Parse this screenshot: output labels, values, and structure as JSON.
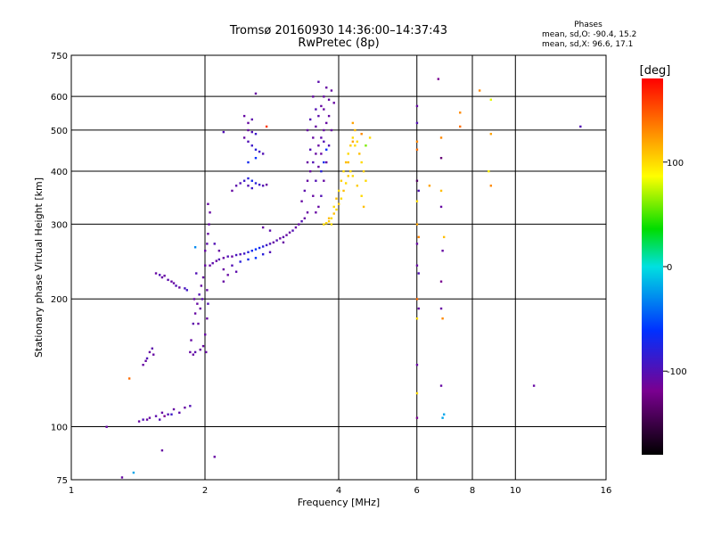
{
  "header": {
    "title_line1": "Tromsø 20160930 14:36:00–14:37:43",
    "title_line2": "RwPretec (8p)",
    "stats_heading": "Phases",
    "stats_O": "mean, sd,O: -90.4, 15.2",
    "stats_X": "mean, sd,X:  96.6, 17.1"
  },
  "colorbar": {
    "unit_label": "[deg]",
    "range": [
      -180,
      180
    ],
    "ticks": [
      "100",
      "0",
      "-100"
    ],
    "tick_values": [
      100,
      0,
      -100
    ]
  },
  "chart_data": {
    "type": "scatter",
    "xlabel": "Frequency [MHz]",
    "ylabel": "Stationary phase Virtual Height [km]",
    "x_scale": "log",
    "y_scale": "log",
    "xlim": [
      1,
      16
    ],
    "ylim": [
      75,
      750
    ],
    "x_ticks": [
      1,
      2,
      4,
      6,
      8,
      10,
      16
    ],
    "x_tick_labels": [
      "1",
      "2",
      "4",
      "6",
      "8",
      "10",
      "16"
    ],
    "y_ticks": [
      75,
      100,
      200,
      300,
      400,
      500,
      600,
      750
    ],
    "y_tick_labels": [
      "75",
      "100",
      "200",
      "300",
      "400",
      "500",
      "600",
      "750"
    ],
    "grid": true,
    "points": [
      [
        1.2,
        100,
        -110
      ],
      [
        1.3,
        76,
        -110
      ],
      [
        1.38,
        78,
        -20
      ],
      [
        1.35,
        130,
        140
      ],
      [
        1.42,
        103,
        -110
      ],
      [
        1.45,
        104,
        -100
      ],
      [
        1.5,
        105,
        -110
      ],
      [
        1.55,
        106,
        -105
      ],
      [
        1.6,
        108,
        -110
      ],
      [
        1.65,
        107,
        -100
      ],
      [
        1.7,
        110,
        -110
      ],
      [
        1.75,
        108,
        -105
      ],
      [
        1.8,
        111,
        -110
      ],
      [
        1.85,
        112,
        -100
      ],
      [
        1.68,
        107,
        -90
      ],
      [
        1.62,
        106,
        -120
      ],
      [
        1.48,
        104,
        -110
      ],
      [
        1.58,
        104,
        -100
      ],
      [
        1.45,
        140,
        -110
      ],
      [
        1.48,
        145,
        -100
      ],
      [
        1.5,
        150,
        -110
      ],
      [
        1.52,
        153,
        -105
      ],
      [
        1.47,
        143,
        -110
      ],
      [
        1.53,
        148,
        -110
      ],
      [
        1.55,
        230,
        -110
      ],
      [
        1.58,
        228,
        -100
      ],
      [
        1.6,
        225,
        -110
      ],
      [
        1.65,
        222,
        -105
      ],
      [
        1.7,
        218,
        -110
      ],
      [
        1.72,
        215,
        -100
      ],
      [
        1.75,
        213,
        -110
      ],
      [
        1.8,
        212,
        -95
      ],
      [
        1.82,
        210,
        -90
      ],
      [
        1.62,
        227,
        -110
      ],
      [
        1.68,
        220,
        -110
      ],
      [
        1.6,
        88,
        -110
      ],
      [
        1.85,
        150,
        -110
      ],
      [
        1.88,
        148,
        -110
      ],
      [
        1.9,
        150,
        -105
      ],
      [
        1.95,
        152,
        -110
      ],
      [
        1.98,
        155,
        -110
      ],
      [
        1.86,
        160,
        -110
      ],
      [
        1.88,
        175,
        -105
      ],
      [
        1.9,
        185,
        -110
      ],
      [
        1.92,
        195,
        -110
      ],
      [
        1.94,
        205,
        -100
      ],
      [
        1.96,
        215,
        -110
      ],
      [
        1.98,
        225,
        -110
      ],
      [
        2.0,
        240,
        -110
      ],
      [
        1.95,
        190,
        -110
      ],
      [
        1.97,
        200,
        -105
      ],
      [
        2.0,
        165,
        -110
      ],
      [
        2.02,
        180,
        -110
      ],
      [
        2.03,
        195,
        -100
      ],
      [
        2.02,
        210,
        -110
      ],
      [
        2.01,
        150,
        -110
      ],
      [
        1.93,
        175,
        -110
      ],
      [
        1.89,
        200,
        -110
      ],
      [
        1.91,
        230,
        -100
      ],
      [
        2.0,
        260,
        -110
      ],
      [
        2.02,
        270,
        -105
      ],
      [
        2.03,
        285,
        -110
      ],
      [
        2.04,
        300,
        -110
      ],
      [
        2.05,
        320,
        -110
      ],
      [
        2.03,
        335,
        -110
      ],
      [
        1.9,
        265,
        -30
      ],
      [
        2.1,
        85,
        -110
      ],
      [
        2.05,
        240,
        -110
      ],
      [
        2.08,
        243,
        -105
      ],
      [
        2.12,
        246,
        -110
      ],
      [
        2.15,
        248,
        -100
      ],
      [
        2.2,
        250,
        -110
      ],
      [
        2.25,
        252,
        -100
      ],
      [
        2.3,
        252,
        -110
      ],
      [
        2.35,
        254,
        -95
      ],
      [
        2.4,
        255,
        -100
      ],
      [
        2.45,
        256,
        -90
      ],
      [
        2.5,
        258,
        -80
      ],
      [
        2.55,
        260,
        -70
      ],
      [
        2.6,
        262,
        -60
      ],
      [
        2.65,
        264,
        -70
      ],
      [
        2.7,
        266,
        -80
      ],
      [
        2.75,
        268,
        -90
      ],
      [
        2.8,
        270,
        -100
      ],
      [
        2.85,
        272,
        -110
      ],
      [
        2.9,
        275,
        -100
      ],
      [
        2.95,
        278,
        -110
      ],
      [
        3.0,
        280,
        -105
      ],
      [
        3.05,
        283,
        -110
      ],
      [
        3.1,
        287,
        -110
      ],
      [
        3.15,
        290,
        -100
      ],
      [
        3.2,
        295,
        -110
      ],
      [
        3.25,
        300,
        -110
      ],
      [
        3.3,
        305,
        -100
      ],
      [
        3.35,
        310,
        -110
      ],
      [
        3.4,
        320,
        -110
      ],
      [
        2.2,
        235,
        -110
      ],
      [
        2.3,
        240,
        -100
      ],
      [
        2.4,
        245,
        -80
      ],
      [
        2.5,
        248,
        -70
      ],
      [
        2.6,
        250,
        -60
      ],
      [
        2.7,
        255,
        -80
      ],
      [
        2.8,
        258,
        -100
      ],
      [
        2.2,
        220,
        -110
      ],
      [
        2.25,
        228,
        -110
      ],
      [
        2.35,
        232,
        -105
      ],
      [
        2.15,
        260,
        -110
      ],
      [
        2.1,
        270,
        -100
      ],
      [
        2.7,
        295,
        -110
      ],
      [
        2.8,
        290,
        -105
      ],
      [
        3.0,
        272,
        -110
      ],
      [
        2.2,
        495,
        -100
      ],
      [
        2.6,
        610,
        -110
      ],
      [
        2.75,
        510,
        160
      ],
      [
        2.3,
        360,
        -110
      ],
      [
        2.35,
        370,
        -105
      ],
      [
        2.4,
        375,
        -100
      ],
      [
        2.45,
        380,
        -90
      ],
      [
        2.5,
        385,
        -80
      ],
      [
        2.55,
        380,
        -70
      ],
      [
        2.6,
        375,
        -80
      ],
      [
        2.65,
        372,
        -90
      ],
      [
        2.7,
        370,
        -100
      ],
      [
        2.75,
        372,
        -110
      ],
      [
        2.5,
        370,
        -100
      ],
      [
        2.55,
        365,
        -90
      ],
      [
        2.45,
        480,
        -110
      ],
      [
        2.5,
        470,
        -100
      ],
      [
        2.55,
        460,
        -90
      ],
      [
        2.6,
        450,
        -80
      ],
      [
        2.65,
        445,
        -90
      ],
      [
        2.7,
        440,
        -100
      ],
      [
        2.5,
        500,
        -110
      ],
      [
        2.55,
        495,
        -100
      ],
      [
        2.6,
        490,
        -90
      ],
      [
        2.5,
        520,
        -110
      ],
      [
        2.55,
        530,
        -105
      ],
      [
        2.45,
        540,
        -110
      ],
      [
        2.5,
        420,
        -70
      ],
      [
        2.6,
        430,
        -60
      ],
      [
        3.3,
        340,
        -110
      ],
      [
        3.35,
        360,
        -105
      ],
      [
        3.4,
        380,
        -110
      ],
      [
        3.45,
        400,
        -110
      ],
      [
        3.5,
        420,
        -100
      ],
      [
        3.55,
        440,
        -110
      ],
      [
        3.6,
        460,
        -110
      ],
      [
        3.65,
        480,
        -105
      ],
      [
        3.7,
        500,
        -110
      ],
      [
        3.75,
        520,
        -110
      ],
      [
        3.4,
        420,
        -110
      ],
      [
        3.45,
        450,
        -100
      ],
      [
        3.5,
        480,
        -110
      ],
      [
        3.55,
        510,
        -110
      ],
      [
        3.6,
        540,
        -105
      ],
      [
        3.65,
        570,
        -110
      ],
      [
        3.7,
        600,
        -110
      ],
      [
        3.75,
        630,
        -110
      ],
      [
        3.6,
        650,
        -105
      ],
      [
        3.5,
        600,
        -110
      ],
      [
        3.55,
        560,
        -100
      ],
      [
        3.7,
        560,
        -110
      ],
      [
        3.8,
        540,
        -110
      ],
      [
        3.85,
        500,
        -110
      ],
      [
        3.8,
        460,
        -100
      ],
      [
        3.75,
        420,
        -110
      ],
      [
        3.7,
        380,
        -110
      ],
      [
        3.65,
        350,
        -100
      ],
      [
        3.6,
        330,
        -110
      ],
      [
        3.55,
        320,
        -110
      ],
      [
        3.5,
        350,
        -110
      ],
      [
        3.55,
        380,
        -100
      ],
      [
        3.6,
        410,
        -110
      ],
      [
        3.65,
        440,
        -110
      ],
      [
        3.7,
        470,
        -100
      ],
      [
        3.8,
        590,
        -110
      ],
      [
        3.85,
        620,
        -110
      ],
      [
        3.9,
        580,
        -110
      ],
      [
        3.4,
        500,
        -110
      ],
      [
        3.45,
        530,
        -100
      ],
      [
        3.65,
        400,
        -80
      ],
      [
        3.7,
        420,
        -70
      ],
      [
        3.75,
        450,
        -60
      ],
      [
        3.7,
        300,
        100
      ],
      [
        3.75,
        302,
        100
      ],
      [
        3.8,
        305,
        105
      ],
      [
        3.85,
        310,
        100
      ],
      [
        3.9,
        318,
        110
      ],
      [
        3.95,
        325,
        100
      ],
      [
        4.0,
        335,
        105
      ],
      [
        4.05,
        345,
        100
      ],
      [
        4.1,
        360,
        110
      ],
      [
        4.15,
        375,
        100
      ],
      [
        4.2,
        390,
        105
      ],
      [
        4.25,
        400,
        100
      ],
      [
        3.9,
        330,
        100
      ],
      [
        3.95,
        345,
        110
      ],
      [
        4.0,
        360,
        100
      ],
      [
        4.05,
        380,
        105
      ],
      [
        4.1,
        400,
        100
      ],
      [
        4.15,
        420,
        110
      ],
      [
        4.2,
        440,
        100
      ],
      [
        4.25,
        460,
        105
      ],
      [
        4.3,
        480,
        100
      ],
      [
        4.35,
        500,
        110
      ],
      [
        4.3,
        520,
        120
      ],
      [
        4.4,
        470,
        100
      ],
      [
        4.45,
        440,
        110
      ],
      [
        4.5,
        420,
        100
      ],
      [
        4.55,
        400,
        105
      ],
      [
        4.6,
        380,
        100
      ],
      [
        4.6,
        460,
        60
      ],
      [
        4.7,
        480,
        100
      ],
      [
        4.55,
        330,
        110
      ],
      [
        4.5,
        350,
        100
      ],
      [
        4.4,
        370,
        105
      ],
      [
        4.3,
        390,
        100
      ],
      [
        4.2,
        420,
        110
      ],
      [
        4.35,
        460,
        100
      ],
      [
        4.3,
        470,
        120
      ],
      [
        4.5,
        490,
        130
      ],
      [
        3.8,
        310,
        110
      ],
      [
        3.85,
        300,
        100
      ],
      [
        6.0,
        570,
        -110
      ],
      [
        6.0,
        520,
        -100
      ],
      [
        6.0,
        470,
        130
      ],
      [
        6.0,
        450,
        140
      ],
      [
        6.0,
        380,
        -140
      ],
      [
        6.05,
        360,
        -100
      ],
      [
        6.0,
        340,
        100
      ],
      [
        6.0,
        300,
        120
      ],
      [
        6.05,
        280,
        130
      ],
      [
        6.0,
        270,
        -110
      ],
      [
        6.0,
        240,
        -110
      ],
      [
        6.0,
        200,
        140
      ],
      [
        6.05,
        190,
        -110
      ],
      [
        6.0,
        180,
        100
      ],
      [
        6.0,
        140,
        -110
      ],
      [
        6.0,
        120,
        100
      ],
      [
        6.0,
        105,
        -120
      ],
      [
        6.05,
        230,
        -100
      ],
      [
        6.4,
        370,
        120
      ],
      [
        6.7,
        660,
        -120
      ],
      [
        6.8,
        480,
        130
      ],
      [
        6.8,
        430,
        -130
      ],
      [
        6.8,
        360,
        110
      ],
      [
        6.8,
        330,
        -110
      ],
      [
        6.9,
        280,
        110
      ],
      [
        6.85,
        260,
        -110
      ],
      [
        6.8,
        220,
        -120
      ],
      [
        6.8,
        190,
        -110
      ],
      [
        6.85,
        180,
        130
      ],
      [
        6.8,
        125,
        -110
      ],
      [
        6.85,
        105,
        -20
      ],
      [
        6.9,
        107,
        -20
      ],
      [
        7.5,
        550,
        130
      ],
      [
        7.5,
        510,
        140
      ],
      [
        8.3,
        620,
        130
      ],
      [
        8.8,
        590,
        80
      ],
      [
        8.8,
        490,
        120
      ],
      [
        8.7,
        400,
        90
      ],
      [
        8.8,
        370,
        130
      ],
      [
        11.0,
        125,
        -110
      ],
      [
        14.0,
        510,
        -100
      ]
    ]
  }
}
